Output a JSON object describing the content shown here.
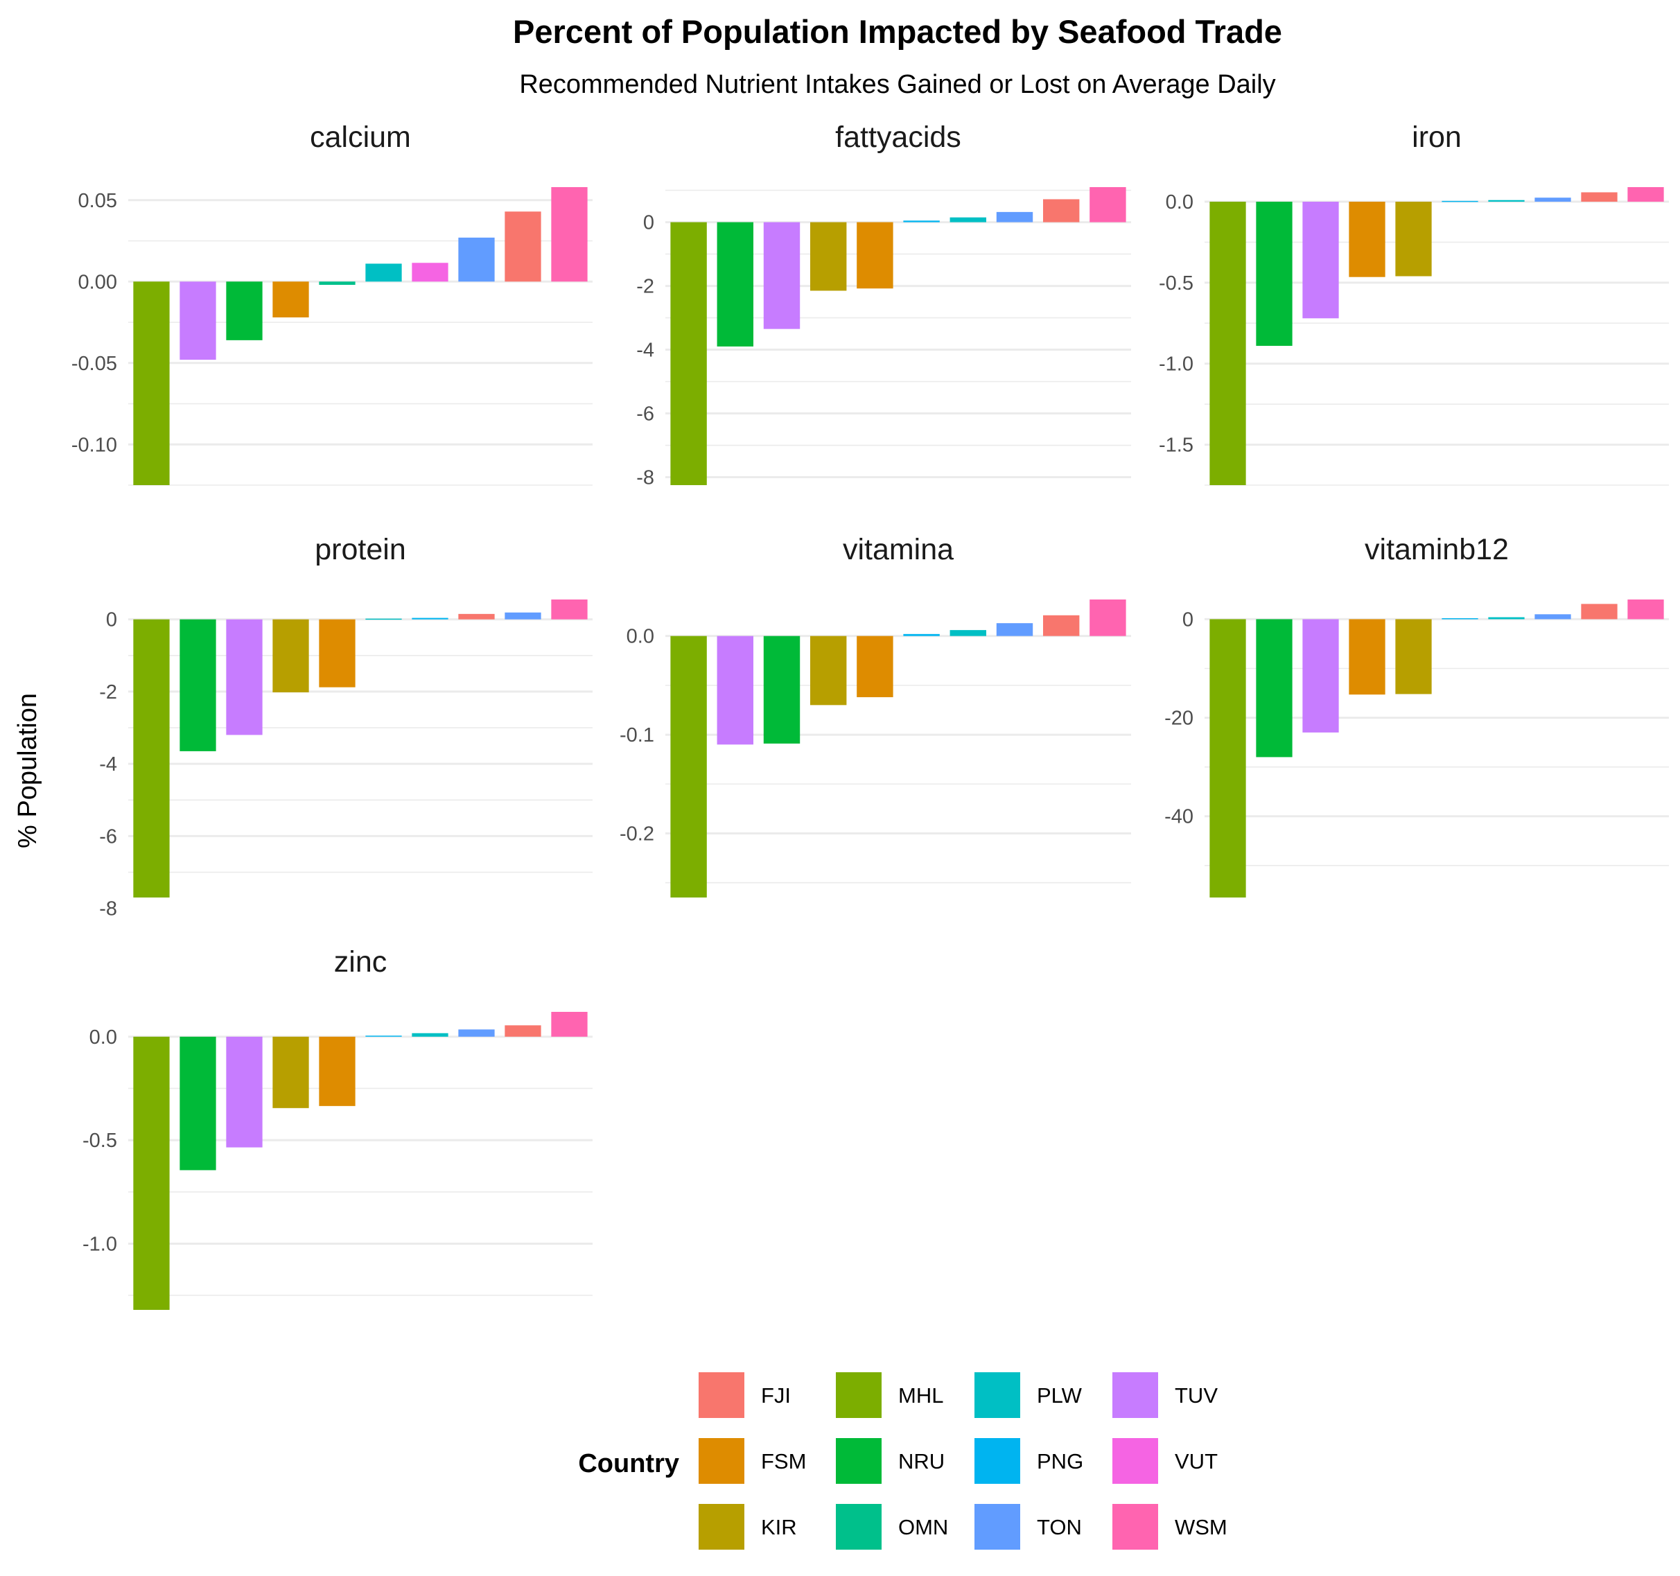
{
  "chart_data": {
    "type": "bar",
    "title": "Percent of Population Impacted by Seafood Trade",
    "subtitle": "Recommended Nutrient Intakes Gained or Lost on Average Daily",
    "ylabel": "% Population",
    "legend": {
      "title": "Country",
      "placement": "bottom",
      "entries": [
        {
          "name": "FJI",
          "color": "#F8766D"
        },
        {
          "name": "FSM",
          "color": "#DE8C00"
        },
        {
          "name": "KIR",
          "color": "#B79F00"
        },
        {
          "name": "MHL",
          "color": "#7CAE00"
        },
        {
          "name": "NRU",
          "color": "#00BA38"
        },
        {
          "name": "OMN",
          "color": "#00C08B"
        },
        {
          "name": "PLW",
          "color": "#00BFC4"
        },
        {
          "name": "PNG",
          "color": "#00B4F0"
        },
        {
          "name": "TON",
          "color": "#619CFF"
        },
        {
          "name": "TUV",
          "color": "#C77CFF"
        },
        {
          "name": "VUT",
          "color": "#F564E3"
        },
        {
          "name": "WSM",
          "color": "#FF64B0"
        }
      ]
    },
    "panels": [
      {
        "name": "calcium",
        "ylim": [
          -0.125,
          0.058
        ],
        "ticks": [
          0.05,
          0,
          -0.05,
          -0.1
        ],
        "tick_labels": [
          "0.05",
          "0.00",
          "-0.05",
          "-0.10"
        ],
        "bars": [
          {
            "country": "MHL",
            "value": -0.125
          },
          {
            "country": "TUV",
            "value": -0.048
          },
          {
            "country": "NRU",
            "value": -0.036
          },
          {
            "country": "FSM",
            "value": -0.022
          },
          {
            "country": "OMN",
            "value": -0.002
          },
          {
            "country": "PLW",
            "value": 0.011
          },
          {
            "country": "VUT",
            "value": 0.0115
          },
          {
            "country": "TON",
            "value": 0.027
          },
          {
            "country": "FJI",
            "value": 0.043
          },
          {
            "country": "WSM",
            "value": 0.058
          }
        ]
      },
      {
        "name": "fattyacids",
        "ylim": [
          -8.25,
          1.1
        ],
        "ticks": [
          0,
          -2,
          -4,
          -6,
          -8
        ],
        "tick_labels": [
          "0",
          "-2",
          "-4",
          "-6",
          "-8"
        ],
        "bars": [
          {
            "country": "MHL",
            "value": -8.25
          },
          {
            "country": "NRU",
            "value": -3.9
          },
          {
            "country": "TUV",
            "value": -3.35
          },
          {
            "country": "KIR",
            "value": -2.15
          },
          {
            "country": "FSM",
            "value": -2.08
          },
          {
            "country": "PNG",
            "value": 0.05
          },
          {
            "country": "PLW",
            "value": 0.15
          },
          {
            "country": "TON",
            "value": 0.32
          },
          {
            "country": "FJI",
            "value": 0.72
          },
          {
            "country": "WSM",
            "value": 1.1
          }
        ]
      },
      {
        "name": "iron",
        "ylim": [
          -1.75,
          0.09
        ],
        "ticks": [
          0,
          -0.5,
          -1,
          -1.5
        ],
        "tick_labels": [
          "0.0",
          "-0.5",
          "-1.0",
          "-1.5"
        ],
        "bars": [
          {
            "country": "MHL",
            "value": -1.75
          },
          {
            "country": "NRU",
            "value": -0.89
          },
          {
            "country": "TUV",
            "value": -0.72
          },
          {
            "country": "FSM",
            "value": -0.465
          },
          {
            "country": "KIR",
            "value": -0.46
          },
          {
            "country": "PNG",
            "value": 0.005
          },
          {
            "country": "PLW",
            "value": 0.01
          },
          {
            "country": "TON",
            "value": 0.025
          },
          {
            "country": "FJI",
            "value": 0.058
          },
          {
            "country": "WSM",
            "value": 0.09
          }
        ]
      },
      {
        "name": "protein",
        "ylim": [
          -7.7,
          0.55
        ],
        "ticks": [
          0,
          -2,
          -4,
          -6,
          -8
        ],
        "tick_labels": [
          "0",
          "-2",
          "-4",
          "-6",
          "-8"
        ],
        "bars": [
          {
            "country": "MHL",
            "value": -7.7
          },
          {
            "country": "NRU",
            "value": -3.65
          },
          {
            "country": "TUV",
            "value": -3.2
          },
          {
            "country": "KIR",
            "value": -2.02
          },
          {
            "country": "FSM",
            "value": -1.88
          },
          {
            "country": "PLW",
            "value": 0.02
          },
          {
            "country": "PNG",
            "value": 0.04
          },
          {
            "country": "FJI",
            "value": 0.15
          },
          {
            "country": "TON",
            "value": 0.19
          },
          {
            "country": "WSM",
            "value": 0.55
          }
        ]
      },
      {
        "name": "vitamina",
        "ylim": [
          -0.265,
          0.037
        ],
        "ticks": [
          0,
          -0.1,
          -0.2
        ],
        "tick_labels": [
          "0.0",
          "-0.1",
          "-0.2"
        ],
        "bars": [
          {
            "country": "MHL",
            "value": -0.265
          },
          {
            "country": "TUV",
            "value": -0.11
          },
          {
            "country": "NRU",
            "value": -0.109
          },
          {
            "country": "KIR",
            "value": -0.07
          },
          {
            "country": "FSM",
            "value": -0.062
          },
          {
            "country": "PNG",
            "value": 0.002
          },
          {
            "country": "PLW",
            "value": 0.006
          },
          {
            "country": "TON",
            "value": 0.013
          },
          {
            "country": "FJI",
            "value": 0.021
          },
          {
            "country": "WSM",
            "value": 0.037
          }
        ]
      },
      {
        "name": "vitaminb12",
        "ylim": [
          -56.5,
          4
        ],
        "ticks": [
          0,
          -20,
          -40
        ],
        "tick_labels": [
          "0",
          "-20",
          "-40"
        ],
        "bars": [
          {
            "country": "MHL",
            "value": -56.5
          },
          {
            "country": "NRU",
            "value": -28
          },
          {
            "country": "TUV",
            "value": -23
          },
          {
            "country": "FSM",
            "value": -15.3
          },
          {
            "country": "KIR",
            "value": -15.2
          },
          {
            "country": "PNG",
            "value": 0.2
          },
          {
            "country": "PLW",
            "value": 0.4
          },
          {
            "country": "TON",
            "value": 1
          },
          {
            "country": "FJI",
            "value": 3.1
          },
          {
            "country": "WSM",
            "value": 4
          }
        ]
      },
      {
        "name": "zinc",
        "ylim": [
          -1.32,
          0.12
        ],
        "ticks": [
          0,
          -0.5,
          -1
        ],
        "tick_labels": [
          "0.0",
          "-0.5",
          "-1.0"
        ],
        "bars": [
          {
            "country": "MHL",
            "value": -1.32
          },
          {
            "country": "NRU",
            "value": -0.645
          },
          {
            "country": "TUV",
            "value": -0.535
          },
          {
            "country": "KIR",
            "value": -0.345
          },
          {
            "country": "FSM",
            "value": -0.335
          },
          {
            "country": "PNG",
            "value": 0.005
          },
          {
            "country": "PLW",
            "value": 0.017
          },
          {
            "country": "TON",
            "value": 0.035
          },
          {
            "country": "FJI",
            "value": 0.055
          },
          {
            "country": "WSM",
            "value": 0.12
          }
        ]
      }
    ]
  }
}
